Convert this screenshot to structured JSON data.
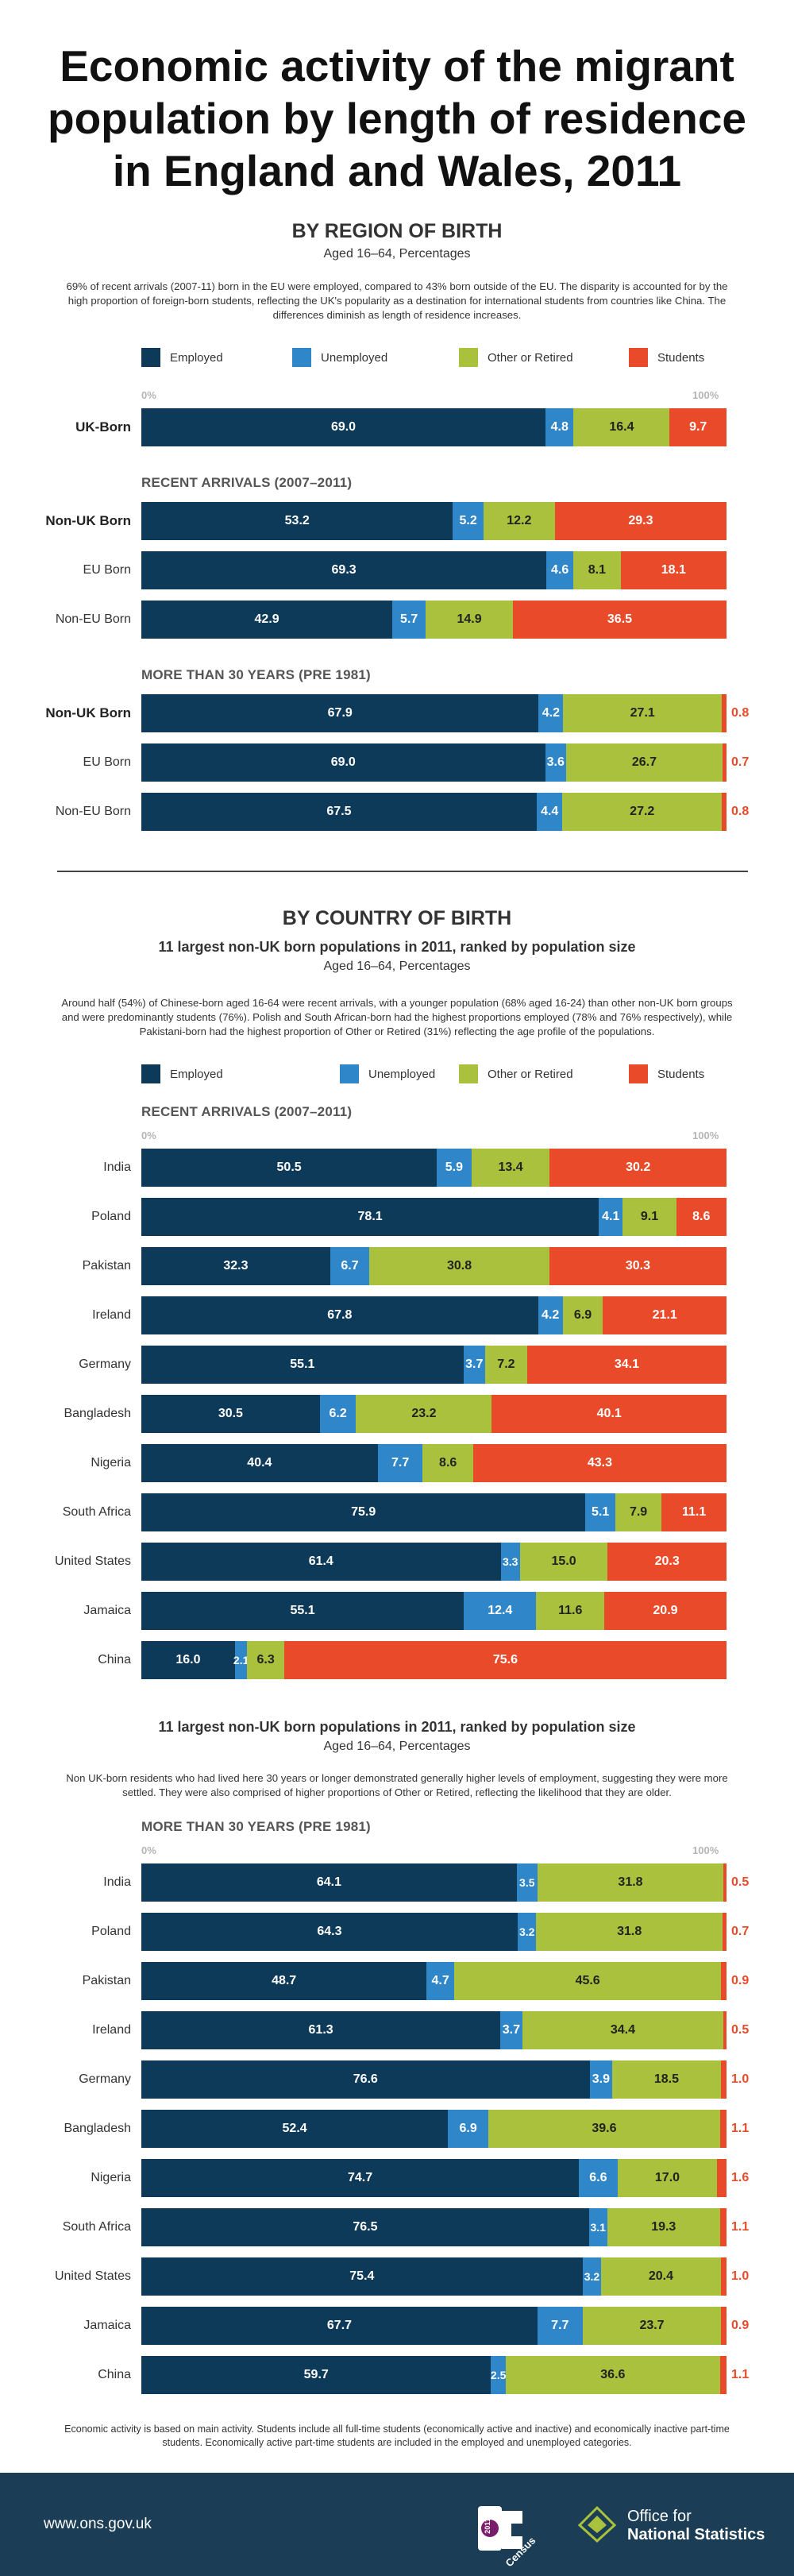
{
  "title": "Economic activity of the migrant population by length of residence in England and Wales, 2011",
  "colors": {
    "employed": "#0e3a59",
    "unemployed": "#2f86c9",
    "other": "#a9c13c",
    "students": "#e94b2a"
  },
  "legend": [
    "Employed",
    "Unemployed",
    "Other or Retired",
    "Students"
  ],
  "axis": {
    "start": "0%",
    "end": "100%"
  },
  "region": {
    "heading": "BY REGION OF BIRTH",
    "subheading": "Aged 16–64, Percentages",
    "text": "69% of recent arrivals (2007-11) born in the EU were employed, compared to 43% born outside of the EU. The disparity is accounted for by the high proportion of foreign-born students, reflecting the UK's popularity as a destination for international students from countries like China. The differences diminish as length of residence increases.",
    "recent_label": "RECENT ARRIVALS (2007–2011)",
    "long_label": "MORE THAN 30 YEARS (PRE 1981)"
  },
  "country": {
    "heading": "BY COUNTRY OF BIRTH",
    "subheading_bold": "11 largest non-UK born populations in 2011, ranked by population size",
    "subheading": "Aged 16–64, Percentages",
    "text": "Around half (54%) of Chinese-born aged 16-64 were recent arrivals, with a younger population (68% aged 16-24) than other non-UK born groups and were predominantly students (76%). Polish and South African-born had the highest proportions employed (78% and 76% respectively), while Pakistani-born had the highest proportion of Other or Retired (31%) reflecting the age profile of the populations.",
    "recent_label": "RECENT ARRIVALS (2007–2011)",
    "subheading_bold2": "11 largest non-UK born populations in 2011, ranked by population size",
    "subheading2": "Aged 16–64, Percentages",
    "text2": "Non UK-born residents who had lived here 30 years or longer demonstrated generally higher levels of employment, suggesting they were more settled. They were also comprised of higher proportions of Other or Retired, reflecting the likelihood that they are older.",
    "long_label": "MORE THAN 30 YEARS (PRE 1981)"
  },
  "footnote": "Economic activity is based on main activity. Students include all full-time students (economically active and inactive) and economically inactive part-time students. Economically active part-time students are included in the employed and unemployed categories.",
  "footer": {
    "url": "www.ons.gov.uk",
    "census_year": "2011",
    "census_word": "Census",
    "ons_line1": "Office for",
    "ons_line2": "National Statistics"
  },
  "chart_data": [
    {
      "type": "bar",
      "stacked": true,
      "orientation": "horizontal",
      "group": "UK",
      "categories": [
        "UK-Born"
      ],
      "series": [
        {
          "name": "Employed",
          "values": [
            69.0
          ]
        },
        {
          "name": "Unemployed",
          "values": [
            4.8
          ]
        },
        {
          "name": "Other or Retired",
          "values": [
            16.4
          ]
        },
        {
          "name": "Students",
          "values": [
            9.7
          ]
        }
      ],
      "xlim": [
        0,
        100
      ]
    },
    {
      "type": "bar",
      "stacked": true,
      "orientation": "horizontal",
      "group": "RECENT ARRIVALS (2007–2011)",
      "categories": [
        "Non-UK Born",
        "EU Born",
        "Non-EU Born"
      ],
      "series": [
        {
          "name": "Employed",
          "values": [
            53.2,
            69.3,
            42.9
          ]
        },
        {
          "name": "Unemployed",
          "values": [
            5.2,
            4.6,
            5.7
          ]
        },
        {
          "name": "Other or Retired",
          "values": [
            12.2,
            8.1,
            14.9
          ]
        },
        {
          "name": "Students",
          "values": [
            29.3,
            18.1,
            36.5
          ]
        }
      ],
      "xlim": [
        0,
        100
      ]
    },
    {
      "type": "bar",
      "stacked": true,
      "orientation": "horizontal",
      "group": "MORE THAN 30 YEARS (PRE 1981)",
      "categories": [
        "Non-UK Born",
        "EU Born",
        "Non-EU Born"
      ],
      "series": [
        {
          "name": "Employed",
          "values": [
            67.9,
            69.0,
            67.5
          ]
        },
        {
          "name": "Unemployed",
          "values": [
            4.2,
            3.6,
            4.4
          ]
        },
        {
          "name": "Other or Retired",
          "values": [
            27.1,
            26.7,
            27.2
          ]
        },
        {
          "name": "Students",
          "values": [
            0.8,
            0.7,
            0.8
          ]
        }
      ],
      "xlim": [
        0,
        100
      ]
    },
    {
      "type": "bar",
      "stacked": true,
      "orientation": "horizontal",
      "group": "RECENT ARRIVALS (2007–2011)",
      "categories": [
        "India",
        "Poland",
        "Pakistan",
        "Ireland",
        "Germany",
        "Bangladesh",
        "Nigeria",
        "South Africa",
        "United States",
        "Jamaica",
        "China"
      ],
      "series": [
        {
          "name": "Employed",
          "values": [
            50.5,
            78.1,
            32.3,
            67.8,
            55.1,
            30.5,
            40.4,
            75.9,
            61.4,
            55.1,
            16.0
          ]
        },
        {
          "name": "Unemployed",
          "values": [
            5.9,
            4.1,
            6.7,
            4.2,
            3.7,
            6.2,
            7.7,
            5.1,
            3.3,
            12.4,
            2.1
          ]
        },
        {
          "name": "Other or Retired",
          "values": [
            13.4,
            9.1,
            30.8,
            6.9,
            7.2,
            23.2,
            8.6,
            7.9,
            15.0,
            11.6,
            6.3
          ]
        },
        {
          "name": "Students",
          "values": [
            30.2,
            8.6,
            30.3,
            21.1,
            34.1,
            40.1,
            43.3,
            11.1,
            20.3,
            20.9,
            75.6
          ]
        }
      ],
      "xlim": [
        0,
        100
      ]
    },
    {
      "type": "bar",
      "stacked": true,
      "orientation": "horizontal",
      "group": "MORE THAN 30 YEARS (PRE 1981)",
      "categories": [
        "India",
        "Poland",
        "Pakistan",
        "Ireland",
        "Germany",
        "Bangladesh",
        "Nigeria",
        "South Africa",
        "United States",
        "Jamaica",
        "China"
      ],
      "series": [
        {
          "name": "Employed",
          "values": [
            64.1,
            64.3,
            48.7,
            61.3,
            76.6,
            52.4,
            74.7,
            76.5,
            75.4,
            67.7,
            59.7
          ]
        },
        {
          "name": "Unemployed",
          "values": [
            3.5,
            3.2,
            4.7,
            3.7,
            3.9,
            6.9,
            6.6,
            3.1,
            3.2,
            7.7,
            2.5
          ]
        },
        {
          "name": "Other or Retired",
          "values": [
            31.8,
            31.8,
            45.6,
            34.4,
            18.5,
            39.6,
            17.0,
            19.3,
            20.4,
            23.7,
            36.6
          ]
        },
        {
          "name": "Students",
          "values": [
            0.5,
            0.7,
            0.9,
            0.5,
            1.0,
            1.1,
            1.6,
            1.1,
            1.0,
            0.9,
            1.1
          ]
        }
      ],
      "xlim": [
        0,
        100
      ]
    }
  ]
}
